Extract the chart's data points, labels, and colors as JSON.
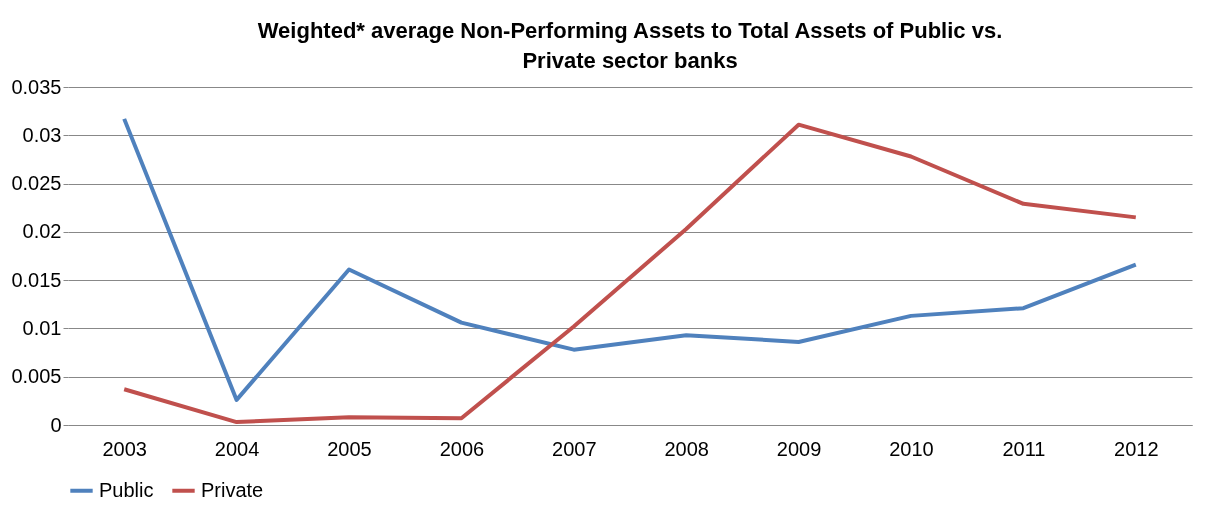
{
  "chart_data": {
    "type": "line",
    "title": "Weighted* average Non-Performing Assets to Total Assets of Public vs. Private sector banks",
    "categories": [
      "2003",
      "2004",
      "2005",
      "2006",
      "2007",
      "2008",
      "2009",
      "2010",
      "2011",
      "2012"
    ],
    "series": [
      {
        "name": "Public",
        "color": "#4f81bd",
        "values": [
          0.0317,
          0.0026,
          0.0161,
          0.0106,
          0.0078,
          0.0093,
          0.0086,
          0.0113,
          0.0121,
          0.0166
        ]
      },
      {
        "name": "Private",
        "color": "#c0504d",
        "values": [
          0.0037,
          0.0003,
          0.0008,
          0.0007,
          0.0102,
          0.0203,
          0.0311,
          0.0278,
          0.0229,
          0.0215
        ]
      }
    ],
    "ylim": [
      0,
      0.035
    ],
    "yticks": [
      0,
      0.005,
      0.01,
      0.015,
      0.02,
      0.025,
      0.03,
      0.035
    ],
    "grid": "y",
    "legend": "bottom",
    "marker": "none",
    "line_style": "solid"
  }
}
